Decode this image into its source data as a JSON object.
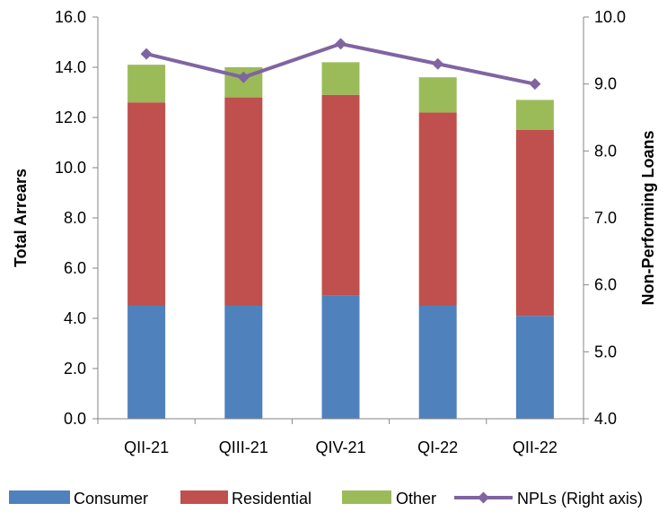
{
  "chart_data": {
    "type": "bar",
    "stacked": true,
    "categories": [
      "QII-21",
      "QIII-21",
      "QIV-21",
      "QI-22",
      "QII-22"
    ],
    "series": [
      {
        "name": "Consumer",
        "values": [
          4.5,
          4.5,
          4.9,
          4.5,
          4.1
        ],
        "color": "#4F81BD"
      },
      {
        "name": "Residential",
        "values": [
          8.1,
          8.3,
          8.0,
          7.7,
          7.4
        ],
        "color": "#C0504D"
      },
      {
        "name": "Other",
        "values": [
          1.5,
          1.2,
          1.3,
          1.4,
          1.2
        ],
        "color": "#9BBB59"
      }
    ],
    "line_series": {
      "name": "NPLs (Right axis)",
      "values": [
        9.45,
        9.1,
        9.6,
        9.3,
        9.0
      ],
      "color": "#8064A2",
      "axis": "right"
    },
    "ylabel": "Total Arrears",
    "y2label": "Non-Performing Loans",
    "ylim": [
      0,
      16
    ],
    "y2lim": [
      4,
      10
    ],
    "yticks": [
      "0.0",
      "2.0",
      "4.0",
      "6.0",
      "8.0",
      "10.0",
      "12.0",
      "14.0",
      "16.0"
    ],
    "y2ticks": [
      "4.0",
      "5.0",
      "6.0",
      "7.0",
      "8.0",
      "9.0",
      "10.0"
    ],
    "grid": false,
    "legend_position": "bottom"
  }
}
